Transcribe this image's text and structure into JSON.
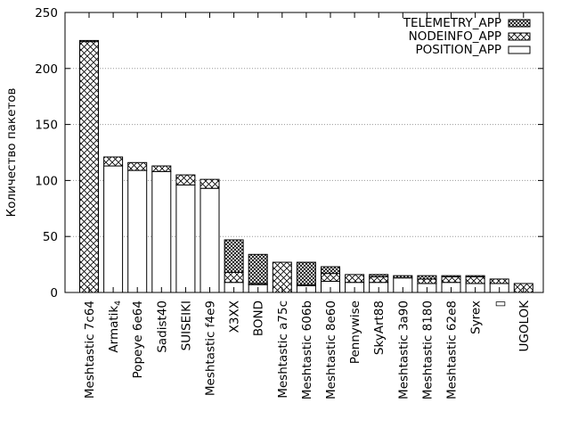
{
  "chart_data": {
    "type": "bar",
    "stacked": true,
    "ylabel": "Количество пакетов",
    "ylim": [
      0,
      250
    ],
    "yticks": [
      0,
      50,
      100,
      150,
      200,
      250
    ],
    "grid": "horizontal dotted",
    "legend_position": "top-right",
    "categories": [
      {
        "label": "Meshtastic 7c64"
      },
      {
        "label": "Armatik",
        "sub": "4"
      },
      {
        "label": "Popeye 6e64"
      },
      {
        "label": "Sadist40"
      },
      {
        "label": "SUISEIKI"
      },
      {
        "label": "Meshtastic f4e9"
      },
      {
        "label": "X3XX"
      },
      {
        "label": "BOND"
      },
      {
        "label": "Meshtastic a75c"
      },
      {
        "label": "Meshtastic 606b"
      },
      {
        "label": "Meshtastic 8e60"
      },
      {
        "label": "Pennywise"
      },
      {
        "label": "SkyArt88"
      },
      {
        "label": "Meshtastic 3a90"
      },
      {
        "label": "Meshtastic 8180"
      },
      {
        "label": "Meshtastic 62e8"
      },
      {
        "label": "Syrex"
      },
      {
        "label": "▯"
      },
      {
        "label": "UGOLOK"
      }
    ],
    "series": [
      {
        "name": "POSITION_APP",
        "pattern": "empty",
        "values": [
          0,
          113,
          109,
          108,
          96,
          93,
          9,
          7,
          0,
          6,
          10,
          9,
          9,
          13,
          8,
          9,
          8,
          8,
          0
        ]
      },
      {
        "name": "NODEINFO_APP",
        "pattern": "cross",
        "values": [
          224,
          8,
          7,
          5,
          9,
          8,
          9,
          1,
          27,
          1,
          7,
          7,
          5,
          0,
          4,
          5,
          6,
          4,
          8
        ]
      },
      {
        "name": "TELEMETRY_APP",
        "pattern": "dense",
        "values": [
          1,
          0,
          0,
          0,
          0,
          0,
          29,
          26,
          0,
          20,
          6,
          0,
          2,
          2,
          3,
          1,
          1,
          0,
          0
        ]
      }
    ]
  }
}
